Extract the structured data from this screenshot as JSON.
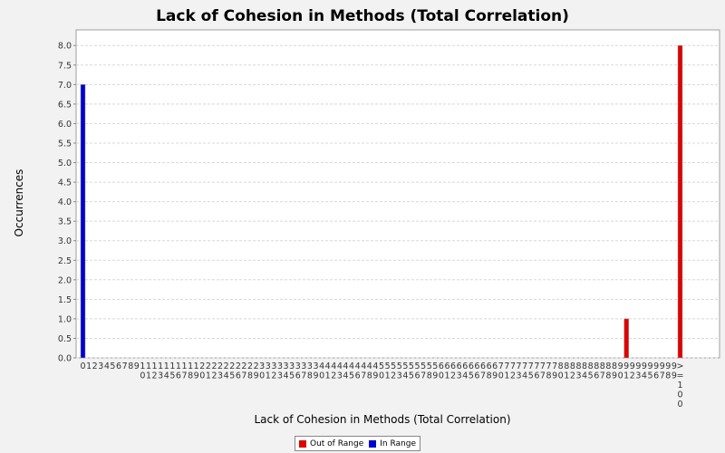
{
  "chart_data": {
    "type": "bar",
    "title": "Lack of Cohesion in Methods (Total Correlation)",
    "xlabel": "Lack of Cohesion in Methods (Total Correlation)",
    "ylabel": "Occurrences",
    "ylim": [
      0,
      8.4
    ],
    "yticks": [
      0.0,
      0.5,
      1.0,
      1.5,
      2.0,
      2.5,
      3.0,
      3.5,
      4.0,
      4.5,
      5.0,
      5.5,
      6.0,
      6.5,
      7.0,
      7.5,
      8.0
    ],
    "grid": true,
    "legend_position": "bottom-center",
    "categories": [
      "0",
      "1",
      "2",
      "3",
      "4",
      "5",
      "6",
      "7",
      "8",
      "9",
      "10",
      "11",
      "12",
      "13",
      "14",
      "15",
      "16",
      "17",
      "18",
      "19",
      "20",
      "21",
      "22",
      "23",
      "24",
      "25",
      "26",
      "27",
      "28",
      "29",
      "30",
      "31",
      "32",
      "33",
      "34",
      "35",
      "36",
      "37",
      "38",
      "39",
      "40",
      "41",
      "42",
      "43",
      "44",
      "45",
      "46",
      "47",
      "48",
      "49",
      "50",
      "51",
      "52",
      "53",
      "54",
      "55",
      "56",
      "57",
      "58",
      "59",
      "60",
      "61",
      "62",
      "63",
      "64",
      "65",
      "66",
      "67",
      "68",
      "69",
      "70",
      "71",
      "72",
      "73",
      "74",
      "75",
      "76",
      "77",
      "78",
      "79",
      "80",
      "81",
      "82",
      "83",
      "84",
      "85",
      "86",
      "87",
      "88",
      "89",
      "90",
      "91",
      "92",
      "93",
      "94",
      "95",
      "96",
      "97",
      "98",
      "99",
      ">=100"
    ],
    "series": [
      {
        "name": "Out of Range",
        "color": "#e00000",
        "values": [
          0,
          0,
          0,
          0,
          0,
          0,
          0,
          0,
          0,
          0,
          0,
          0,
          0,
          0,
          0,
          0,
          0,
          0,
          0,
          0,
          0,
          0,
          0,
          0,
          0,
          0,
          0,
          0,
          0,
          0,
          0,
          0,
          0,
          0,
          0,
          0,
          0,
          0,
          0,
          0,
          0,
          0,
          0,
          0,
          0,
          0,
          0,
          0,
          0,
          0,
          0,
          0,
          0,
          0,
          0,
          0,
          0,
          0,
          0,
          0,
          0,
          0,
          0,
          0,
          0,
          0,
          0,
          0,
          0,
          0,
          0,
          0,
          0,
          0,
          0,
          0,
          0,
          0,
          0,
          0,
          0,
          0,
          0,
          0,
          0,
          0,
          0,
          0,
          0,
          0,
          0,
          1,
          0,
          0,
          0,
          0,
          0,
          0,
          0,
          0,
          8
        ]
      },
      {
        "name": "In Range",
        "color": "#0000d0",
        "values": [
          7,
          0,
          0,
          0,
          0,
          0,
          0,
          0,
          0,
          0,
          0,
          0,
          0,
          0,
          0,
          0,
          0,
          0,
          0,
          0,
          0,
          0,
          0,
          0,
          0,
          0,
          0,
          0,
          0,
          0,
          0,
          0,
          0,
          0,
          0,
          0,
          0,
          0,
          0,
          0,
          0,
          0,
          0,
          0,
          0,
          0,
          0,
          0,
          0,
          0,
          0,
          0,
          0,
          0,
          0,
          0,
          0,
          0,
          0,
          0,
          0,
          0,
          0,
          0,
          0,
          0,
          0,
          0,
          0,
          0,
          0,
          0,
          0,
          0,
          0,
          0,
          0,
          0,
          0,
          0,
          0,
          0,
          0,
          0,
          0,
          0,
          0,
          0,
          0,
          0,
          0,
          0,
          0,
          0,
          0,
          0,
          0,
          0,
          0,
          0,
          0
        ]
      }
    ]
  }
}
